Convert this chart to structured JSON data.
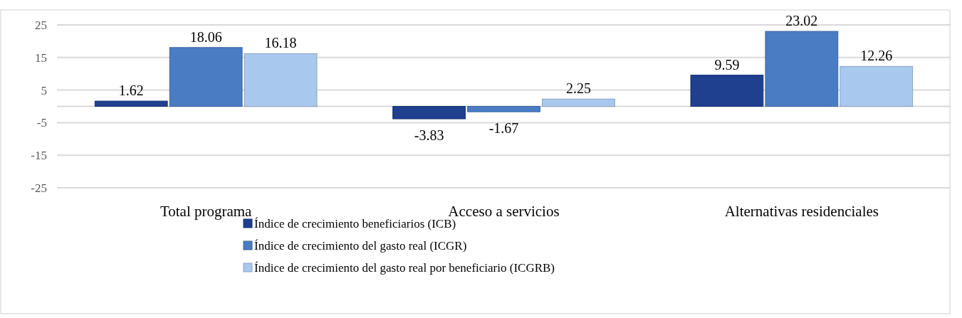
{
  "chart_data": {
    "type": "bar",
    "categories": [
      "Total programa",
      "Acceso a servicios",
      "Alternativas residenciales"
    ],
    "series": [
      {
        "name": "Índice de crecimiento beneficiarios (ICB)",
        "color": "#1f3f8f",
        "values": [
          1.62,
          -3.83,
          9.59
        ]
      },
      {
        "name": "Índice de crecimiento del gasto real (ICGR)",
        "color": "#4a7cc4",
        "values": [
          18.06,
          -1.67,
          23.02
        ]
      },
      {
        "name": "Índice de crecimiento del gasto real por beneficiario (ICGRB)",
        "color": "#a9c8ee",
        "values": [
          16.18,
          2.25,
          12.26
        ]
      }
    ],
    "ylim": [
      -25,
      25
    ],
    "yticks": [
      -25,
      -15,
      -5,
      5,
      15,
      25
    ],
    "grid": "y",
    "data_labels": true,
    "legend": "bottom"
  }
}
